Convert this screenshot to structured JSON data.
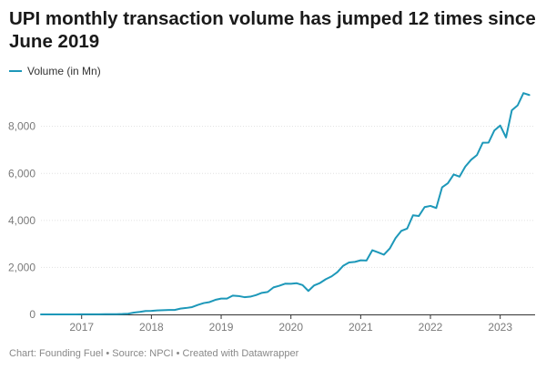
{
  "title": "UPI monthly transaction volume has jumped 12 times since June 2019",
  "footer": "Chart: Founding Fuel • Source: NPCI • Created with Datawrapper",
  "colors": {
    "series": "#1d98b9",
    "grid": "#e1e1e1",
    "axis": "#333333"
  },
  "chart_data": {
    "type": "line",
    "title": "UPI monthly transaction volume has jumped 12 times since June 2019",
    "xlabel": "",
    "ylabel": "",
    "ylim": [
      0,
      9500
    ],
    "xlim": [
      "2016-06",
      "2023-07"
    ],
    "grid": true,
    "legend": "top-left",
    "y_ticks": [
      0,
      2000,
      4000,
      6000,
      8000
    ],
    "y_tick_labels": [
      "0",
      "2,000",
      "4,000",
      "6,000",
      "8,000"
    ],
    "x_ticks": [
      "2017-01",
      "2018-01",
      "2019-01",
      "2020-01",
      "2021-01",
      "2022-01",
      "2023-01"
    ],
    "x_tick_labels": [
      "2017",
      "2018",
      "2019",
      "2020",
      "2021",
      "2022",
      "2023"
    ],
    "series": [
      {
        "name": "Volume (in Mn)",
        "x": [
          "2016-06",
          "2016-07",
          "2016-08",
          "2016-09",
          "2016-10",
          "2016-11",
          "2016-12",
          "2017-01",
          "2017-02",
          "2017-03",
          "2017-04",
          "2017-05",
          "2017-06",
          "2017-07",
          "2017-08",
          "2017-09",
          "2017-10",
          "2017-11",
          "2017-12",
          "2018-01",
          "2018-02",
          "2018-03",
          "2018-04",
          "2018-05",
          "2018-06",
          "2018-07",
          "2018-08",
          "2018-09",
          "2018-10",
          "2018-11",
          "2018-12",
          "2019-01",
          "2019-02",
          "2019-03",
          "2019-04",
          "2019-05",
          "2019-06",
          "2019-07",
          "2019-08",
          "2019-09",
          "2019-10",
          "2019-11",
          "2019-12",
          "2020-01",
          "2020-02",
          "2020-03",
          "2020-04",
          "2020-05",
          "2020-06",
          "2020-07",
          "2020-08",
          "2020-09",
          "2020-10",
          "2020-11",
          "2020-12",
          "2021-01",
          "2021-02",
          "2021-03",
          "2021-04",
          "2021-05",
          "2021-06",
          "2021-07",
          "2021-08",
          "2021-09",
          "2021-10",
          "2021-11",
          "2021-12",
          "2022-01",
          "2022-02",
          "2022-03",
          "2022-04",
          "2022-05",
          "2022-06",
          "2022-07",
          "2022-08",
          "2022-09",
          "2022-10",
          "2022-11",
          "2022-12",
          "2023-01",
          "2023-02",
          "2023-03",
          "2023-04",
          "2023-05",
          "2023-06"
        ],
        "values": [
          0,
          0,
          0,
          0,
          0.1,
          0.3,
          2,
          4,
          4,
          6,
          7,
          9,
          10,
          11,
          17,
          31,
          77,
          105,
          145,
          152,
          171,
          178,
          190,
          190,
          246,
          274,
          312,
          406,
          482,
          525,
          620,
          673,
          674,
          800,
          782,
          734,
          754,
          822,
          918,
          955,
          1148,
          1219,
          1308,
          1305,
          1326,
          1247,
          999,
          1235,
          1337,
          1497,
          1619,
          1800,
          2071,
          2210,
          2234,
          2303,
          2293,
          2731,
          2641,
          2540,
          2803,
          3248,
          3556,
          3654,
          4218,
          4186,
          4566,
          4617,
          4527,
          5405,
          5583,
          5955,
          5862,
          6290,
          6579,
          6781,
          7305,
          7309,
          7829,
          8037,
          7528,
          8685,
          8894,
          9415,
          9335
        ]
      }
    ]
  }
}
